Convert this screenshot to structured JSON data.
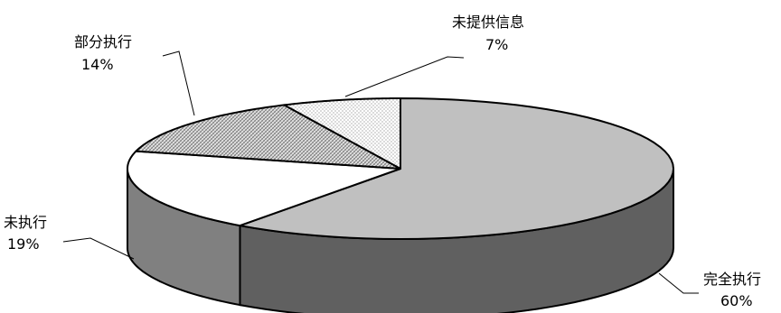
{
  "chart_data": {
    "type": "pie",
    "style": "3d-exploded-view",
    "title": "",
    "slices": [
      {
        "label": "完全执行",
        "pct_label": "60%",
        "value": 60,
        "fill": "#c0c0c0",
        "side_fill": "#606060",
        "pattern": "solid"
      },
      {
        "label": "未执行",
        "pct_label": "19%",
        "value": 19,
        "fill": "#ffffff",
        "side_fill": "#808080",
        "pattern": "solid"
      },
      {
        "label": "部分执行",
        "pct_label": "14%",
        "value": 14,
        "fill": "#d8d8d8",
        "side_fill": "#707070",
        "pattern": "crosshatch"
      },
      {
        "label": "未提供信息",
        "pct_label": "7%",
        "value": 7,
        "fill": "#f2f2f2",
        "side_fill": "#909090",
        "pattern": "dots"
      }
    ]
  }
}
